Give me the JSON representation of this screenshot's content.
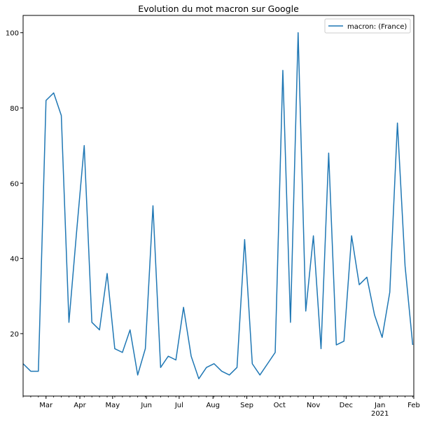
{
  "chart_data": {
    "type": "line",
    "title": "Evolution du mot macron sur Google",
    "xlabel": "",
    "ylabel": "",
    "ylim": [
      3.4,
      104.6
    ],
    "xlim": [
      "2020-02-09",
      "2021-02-01"
    ],
    "grid": false,
    "legend_position": "top-right",
    "series": [
      {
        "name": "macron: (France)",
        "color": "#1f77b4",
        "x": [
          "2020-02-09",
          "2020-02-16",
          "2020-02-23",
          "2020-03-01",
          "2020-03-08",
          "2020-03-15",
          "2020-03-22",
          "2020-03-29",
          "2020-04-05",
          "2020-04-12",
          "2020-04-19",
          "2020-04-26",
          "2020-05-03",
          "2020-05-10",
          "2020-05-17",
          "2020-05-24",
          "2020-05-31",
          "2020-06-07",
          "2020-06-14",
          "2020-06-21",
          "2020-06-28",
          "2020-07-05",
          "2020-07-12",
          "2020-07-19",
          "2020-07-26",
          "2020-08-02",
          "2020-08-09",
          "2020-08-16",
          "2020-08-23",
          "2020-08-30",
          "2020-09-06",
          "2020-09-13",
          "2020-09-20",
          "2020-09-27",
          "2020-10-04",
          "2020-10-11",
          "2020-10-18",
          "2020-10-25",
          "2020-11-01",
          "2020-11-08",
          "2020-11-15",
          "2020-11-22",
          "2020-11-29",
          "2020-12-06",
          "2020-12-13",
          "2020-12-20",
          "2020-12-27",
          "2021-01-03",
          "2021-01-10",
          "2021-01-17",
          "2021-01-24",
          "2021-01-31"
        ],
        "values": [
          12,
          10,
          10,
          82,
          84,
          78,
          23,
          47,
          70,
          23,
          21,
          36,
          16,
          15,
          21,
          9,
          16,
          54,
          11,
          14,
          13,
          27,
          14,
          8,
          11,
          12,
          10,
          9,
          11,
          45,
          12,
          9,
          12,
          15,
          90,
          23,
          100,
          26,
          46,
          16,
          68,
          17,
          18,
          46,
          33,
          35,
          25,
          19,
          31,
          76,
          38,
          17
        ]
      }
    ],
    "x_ticks": [
      {
        "date": "2020-03-01",
        "label": "Mar",
        "sub": ""
      },
      {
        "date": "2020-04-01",
        "label": "Apr",
        "sub": ""
      },
      {
        "date": "2020-05-01",
        "label": "May",
        "sub": ""
      },
      {
        "date": "2020-06-01",
        "label": "Jun",
        "sub": ""
      },
      {
        "date": "2020-07-01",
        "label": "Jul",
        "sub": ""
      },
      {
        "date": "2020-08-01",
        "label": "Aug",
        "sub": ""
      },
      {
        "date": "2020-09-01",
        "label": "Sep",
        "sub": ""
      },
      {
        "date": "2020-10-01",
        "label": "Oct",
        "sub": ""
      },
      {
        "date": "2020-11-01",
        "label": "Nov",
        "sub": ""
      },
      {
        "date": "2020-12-01",
        "label": "Dec",
        "sub": ""
      },
      {
        "date": "2021-01-01",
        "label": "Jan",
        "sub": "2021"
      },
      {
        "date": "2021-02-01",
        "label": "Feb",
        "sub": ""
      }
    ],
    "y_ticks": [
      20,
      40,
      60,
      80,
      100
    ]
  }
}
